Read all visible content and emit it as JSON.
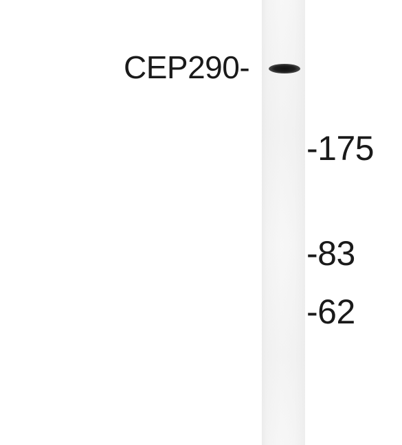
{
  "blot": {
    "protein_label": "CEP290-",
    "markers": [
      {
        "label": "-175"
      },
      {
        "label": "-83"
      },
      {
        "label": "-62"
      }
    ]
  }
}
